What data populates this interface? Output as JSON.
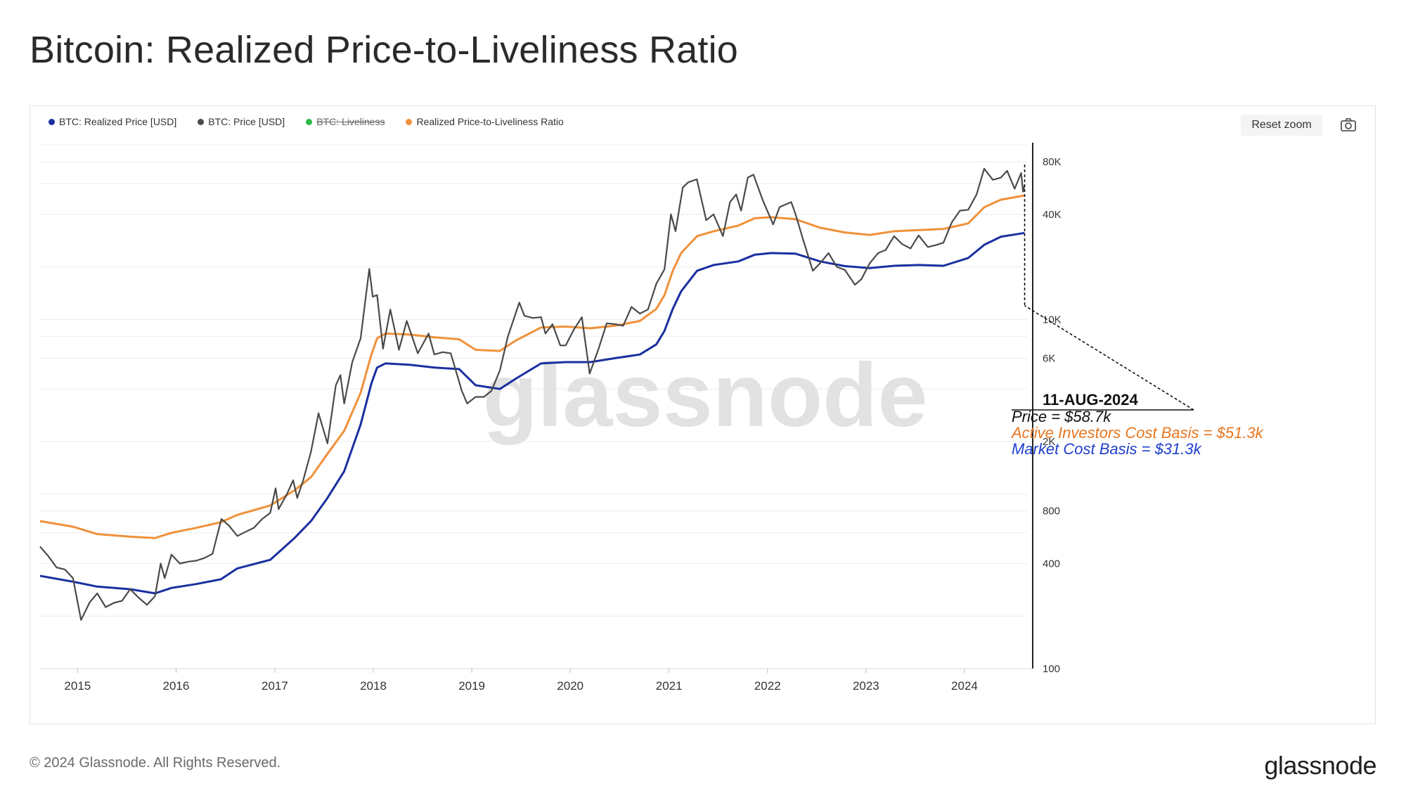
{
  "header": {
    "title": "Bitcoin: Realized Price-to-Liveliness Ratio"
  },
  "legend": [
    {
      "label": "BTC: Realized Price [USD]",
      "color": "#1a2fa0",
      "enabled": true
    },
    {
      "label": "BTC: Price [USD]",
      "color": "#4a4a4a",
      "enabled": true
    },
    {
      "label": "BTC: Liveliness",
      "color": "#2db84a",
      "enabled": false
    },
    {
      "label": "Realized Price-to-Liveliness Ratio",
      "color": "#f0913a",
      "enabled": true
    }
  ],
  "toolbar": {
    "reset_zoom_label": "Reset zoom",
    "export_icon": "camera-icon"
  },
  "watermark": "glassnode",
  "annotation": {
    "date": "11-AUG-2024",
    "price": "Price = $58.7k",
    "active": "Active Investors Cost Basis = $51.3k",
    "market": "Market Cost Basis = $31.3k"
  },
  "footer": {
    "copyright": "© 2024 Glassnode. All Rights Reserved.",
    "brand": "glassnode"
  },
  "colors": {
    "price": "#4a4a4a",
    "realized": "#1a2fa0",
    "ratio": "#f0913a",
    "annotation_orange": "#e8761f",
    "annotation_blue": "#1f3fcf"
  },
  "chart_data": {
    "type": "line",
    "y_scale": "log",
    "ylim": [
      100,
      100000
    ],
    "xlim": [
      "2014-08-15",
      "2024-08-20"
    ],
    "y_ticks": [
      {
        "value": 100,
        "label": "100"
      },
      {
        "value": 400,
        "label": "400"
      },
      {
        "value": 800,
        "label": "800"
      },
      {
        "value": 2000,
        "label": "2K"
      },
      {
        "value": 6000,
        "label": "6K"
      },
      {
        "value": 10000,
        "label": "10K"
      },
      {
        "value": 40000,
        "label": "40K"
      },
      {
        "value": 80000,
        "label": "80K"
      }
    ],
    "x_ticks": [
      {
        "date": "2015-01-01",
        "label": "2015"
      },
      {
        "date": "2016-01-01",
        "label": "2016"
      },
      {
        "date": "2017-01-01",
        "label": "2017"
      },
      {
        "date": "2018-01-01",
        "label": "2018"
      },
      {
        "date": "2019-01-01",
        "label": "2019"
      },
      {
        "date": "2020-01-01",
        "label": "2020"
      },
      {
        "date": "2021-01-01",
        "label": "2021"
      },
      {
        "date": "2022-01-01",
        "label": "2022"
      },
      {
        "date": "2023-01-01",
        "label": "2023"
      },
      {
        "date": "2024-01-01",
        "label": "2024"
      }
    ],
    "series": [
      {
        "name": "BTC: Price [USD]",
        "points": [
          [
            "2014-08-15",
            500
          ],
          [
            "2014-09-15",
            440
          ],
          [
            "2014-10-15",
            380
          ],
          [
            "2014-11-15",
            370
          ],
          [
            "2014-12-15",
            330
          ],
          [
            "2015-01-14",
            190
          ],
          [
            "2015-02-15",
            240
          ],
          [
            "2015-03-15",
            270
          ],
          [
            "2015-04-15",
            225
          ],
          [
            "2015-05-15",
            238
          ],
          [
            "2015-06-15",
            245
          ],
          [
            "2015-07-15",
            285
          ],
          [
            "2015-08-15",
            255
          ],
          [
            "2015-09-15",
            232
          ],
          [
            "2015-10-15",
            260
          ],
          [
            "2015-11-05",
            400
          ],
          [
            "2015-11-20",
            330
          ],
          [
            "2015-12-15",
            450
          ],
          [
            "2016-01-15",
            400
          ],
          [
            "2016-02-15",
            410
          ],
          [
            "2016-03-15",
            415
          ],
          [
            "2016-04-15",
            430
          ],
          [
            "2016-05-15",
            455
          ],
          [
            "2016-06-17",
            720
          ],
          [
            "2016-07-15",
            660
          ],
          [
            "2016-08-15",
            575
          ],
          [
            "2016-09-15",
            608
          ],
          [
            "2016-10-15",
            640
          ],
          [
            "2016-11-15",
            720
          ],
          [
            "2016-12-15",
            780
          ],
          [
            "2017-01-04",
            1080
          ],
          [
            "2017-01-15",
            820
          ],
          [
            "2017-02-15",
            1000
          ],
          [
            "2017-03-10",
            1200
          ],
          [
            "2017-03-25",
            950
          ],
          [
            "2017-04-15",
            1180
          ],
          [
            "2017-05-15",
            1750
          ],
          [
            "2017-06-12",
            2900
          ],
          [
            "2017-07-15",
            1950
          ],
          [
            "2017-08-15",
            4200
          ],
          [
            "2017-09-01",
            4800
          ],
          [
            "2017-09-15",
            3300
          ],
          [
            "2017-10-15",
            5700
          ],
          [
            "2017-11-15",
            7800
          ],
          [
            "2017-12-17",
            19500
          ],
          [
            "2017-12-30",
            13500
          ],
          [
            "2018-01-15",
            13800
          ],
          [
            "2018-02-06",
            6800
          ],
          [
            "2018-03-05",
            11400
          ],
          [
            "2018-04-06",
            6700
          ],
          [
            "2018-05-05",
            9800
          ],
          [
            "2018-06-15",
            6400
          ],
          [
            "2018-07-25",
            8300
          ],
          [
            "2018-08-15",
            6300
          ],
          [
            "2018-09-15",
            6500
          ],
          [
            "2018-10-15",
            6400
          ],
          [
            "2018-11-25",
            3900
          ],
          [
            "2018-12-15",
            3300
          ],
          [
            "2019-01-15",
            3600
          ],
          [
            "2019-02-15",
            3600
          ],
          [
            "2019-03-15",
            3900
          ],
          [
            "2019-04-15",
            5100
          ],
          [
            "2019-05-15",
            8000
          ],
          [
            "2019-06-26",
            12500
          ],
          [
            "2019-07-15",
            10500
          ],
          [
            "2019-08-15",
            10200
          ],
          [
            "2019-09-15",
            10300
          ],
          [
            "2019-10-01",
            8300
          ],
          [
            "2019-10-27",
            9400
          ],
          [
            "2019-11-25",
            7100
          ],
          [
            "2019-12-15",
            7100
          ],
          [
            "2020-01-15",
            8800
          ],
          [
            "2020-02-13",
            10300
          ],
          [
            "2020-03-13",
            4900
          ],
          [
            "2020-04-15",
            6800
          ],
          [
            "2020-05-15",
            9500
          ],
          [
            "2020-06-15",
            9400
          ],
          [
            "2020-07-15",
            9200
          ],
          [
            "2020-08-15",
            11800
          ],
          [
            "2020-09-15",
            10800
          ],
          [
            "2020-10-15",
            11400
          ],
          [
            "2020-11-15",
            16000
          ],
          [
            "2020-12-15",
            19400
          ],
          [
            "2021-01-08",
            40000
          ],
          [
            "2021-01-25",
            32000
          ],
          [
            "2021-02-21",
            57000
          ],
          [
            "2021-03-13",
            61000
          ],
          [
            "2021-04-14",
            63500
          ],
          [
            "2021-05-19",
            37000
          ],
          [
            "2021-06-15",
            40000
          ],
          [
            "2021-07-20",
            30000
          ],
          [
            "2021-08-15",
            47000
          ],
          [
            "2021-09-07",
            52000
          ],
          [
            "2021-09-25",
            42000
          ],
          [
            "2021-10-20",
            65000
          ],
          [
            "2021-11-10",
            67500
          ],
          [
            "2021-12-15",
            48000
          ],
          [
            "2022-01-22",
            35000
          ],
          [
            "2022-02-15",
            44000
          ],
          [
            "2022-03-30",
            47000
          ],
          [
            "2022-04-15",
            40000
          ],
          [
            "2022-05-12",
            29000
          ],
          [
            "2022-06-18",
            19000
          ],
          [
            "2022-07-15",
            21000
          ],
          [
            "2022-08-15",
            24000
          ],
          [
            "2022-09-15",
            20000
          ],
          [
            "2022-10-15",
            19200
          ],
          [
            "2022-11-21",
            15800
          ],
          [
            "2022-12-15",
            17000
          ],
          [
            "2023-01-15",
            21000
          ],
          [
            "2023-02-15",
            24000
          ],
          [
            "2023-03-15",
            25000
          ],
          [
            "2023-04-15",
            30000
          ],
          [
            "2023-05-15",
            27000
          ],
          [
            "2023-06-15",
            25500
          ],
          [
            "2023-07-15",
            30300
          ],
          [
            "2023-08-18",
            26000
          ],
          [
            "2023-09-15",
            26600
          ],
          [
            "2023-10-15",
            27500
          ],
          [
            "2023-11-15",
            36000
          ],
          [
            "2023-12-15",
            42000
          ],
          [
            "2024-01-15",
            42500
          ],
          [
            "2024-02-15",
            52000
          ],
          [
            "2024-03-14",
            73000
          ],
          [
            "2024-04-15",
            63000
          ],
          [
            "2024-05-15",
            65000
          ],
          [
            "2024-06-07",
            71000
          ],
          [
            "2024-07-05",
            56000
          ],
          [
            "2024-07-29",
            69000
          ],
          [
            "2024-08-05",
            54000
          ],
          [
            "2024-08-11",
            58700
          ]
        ]
      },
      {
        "name": "BTC: Realized Price [USD]",
        "points": [
          [
            "2014-08-15",
            340
          ],
          [
            "2014-12-15",
            315
          ],
          [
            "2015-03-15",
            295
          ],
          [
            "2015-07-15",
            285
          ],
          [
            "2015-10-15",
            270
          ],
          [
            "2015-12-15",
            290
          ],
          [
            "2016-03-15",
            305
          ],
          [
            "2016-06-15",
            325
          ],
          [
            "2016-08-15",
            375
          ],
          [
            "2016-12-15",
            420
          ],
          [
            "2017-03-15",
            560
          ],
          [
            "2017-05-15",
            700
          ],
          [
            "2017-07-15",
            950
          ],
          [
            "2017-09-15",
            1350
          ],
          [
            "2017-11-15",
            2500
          ],
          [
            "2017-12-25",
            4300
          ],
          [
            "2018-01-15",
            5300
          ],
          [
            "2018-02-15",
            5600
          ],
          [
            "2018-05-15",
            5500
          ],
          [
            "2018-08-15",
            5300
          ],
          [
            "2018-11-15",
            5200
          ],
          [
            "2019-01-15",
            4200
          ],
          [
            "2019-04-15",
            4000
          ],
          [
            "2019-06-15",
            4600
          ],
          [
            "2019-09-15",
            5600
          ],
          [
            "2019-12-15",
            5700
          ],
          [
            "2020-03-15",
            5700
          ],
          [
            "2020-06-15",
            6000
          ],
          [
            "2020-09-15",
            6300
          ],
          [
            "2020-11-15",
            7200
          ],
          [
            "2020-12-15",
            8600
          ],
          [
            "2021-01-15",
            11500
          ],
          [
            "2021-02-15",
            14500
          ],
          [
            "2021-04-15",
            19000
          ],
          [
            "2021-06-15",
            20500
          ],
          [
            "2021-09-15",
            21500
          ],
          [
            "2021-11-15",
            23500
          ],
          [
            "2022-01-15",
            24000
          ],
          [
            "2022-04-15",
            23800
          ],
          [
            "2022-07-15",
            21500
          ],
          [
            "2022-10-15",
            20200
          ],
          [
            "2023-01-15",
            19700
          ],
          [
            "2023-04-15",
            20300
          ],
          [
            "2023-07-15",
            20500
          ],
          [
            "2023-10-15",
            20300
          ],
          [
            "2024-01-15",
            22500
          ],
          [
            "2024-03-15",
            26800
          ],
          [
            "2024-05-15",
            29800
          ],
          [
            "2024-08-11",
            31300
          ]
        ]
      },
      {
        "name": "Realized Price-to-Liveliness Ratio",
        "points": [
          [
            "2014-08-15",
            700
          ],
          [
            "2014-12-15",
            650
          ],
          [
            "2015-03-15",
            590
          ],
          [
            "2015-07-15",
            570
          ],
          [
            "2015-10-15",
            560
          ],
          [
            "2015-12-15",
            600
          ],
          [
            "2016-03-15",
            640
          ],
          [
            "2016-06-15",
            690
          ],
          [
            "2016-08-15",
            760
          ],
          [
            "2016-12-15",
            860
          ],
          [
            "2017-03-15",
            1050
          ],
          [
            "2017-05-15",
            1250
          ],
          [
            "2017-07-15",
            1700
          ],
          [
            "2017-09-15",
            2300
          ],
          [
            "2017-11-15",
            3800
          ],
          [
            "2017-12-25",
            6300
          ],
          [
            "2018-01-15",
            7800
          ],
          [
            "2018-02-15",
            8300
          ],
          [
            "2018-05-15",
            8200
          ],
          [
            "2018-08-15",
            7900
          ],
          [
            "2018-11-15",
            7700
          ],
          [
            "2019-01-15",
            6700
          ],
          [
            "2019-04-15",
            6600
          ],
          [
            "2019-06-15",
            7600
          ],
          [
            "2019-09-15",
            9000
          ],
          [
            "2019-12-15",
            9100
          ],
          [
            "2020-03-15",
            8900
          ],
          [
            "2020-06-15",
            9200
          ],
          [
            "2020-09-15",
            9800
          ],
          [
            "2020-11-15",
            11500
          ],
          [
            "2020-12-15",
            13800
          ],
          [
            "2021-01-15",
            19000
          ],
          [
            "2021-02-15",
            24000
          ],
          [
            "2021-04-15",
            30000
          ],
          [
            "2021-06-15",
            32000
          ],
          [
            "2021-09-15",
            34500
          ],
          [
            "2021-11-15",
            38000
          ],
          [
            "2022-01-15",
            38500
          ],
          [
            "2022-04-15",
            37500
          ],
          [
            "2022-07-15",
            33500
          ],
          [
            "2022-10-15",
            31500
          ],
          [
            "2023-01-15",
            30500
          ],
          [
            "2023-04-15",
            32000
          ],
          [
            "2023-07-15",
            32500
          ],
          [
            "2023-10-15",
            33000
          ],
          [
            "2024-01-15",
            35500
          ],
          [
            "2024-03-15",
            44000
          ],
          [
            "2024-05-15",
            48500
          ],
          [
            "2024-08-11",
            51300
          ]
        ]
      }
    ]
  }
}
